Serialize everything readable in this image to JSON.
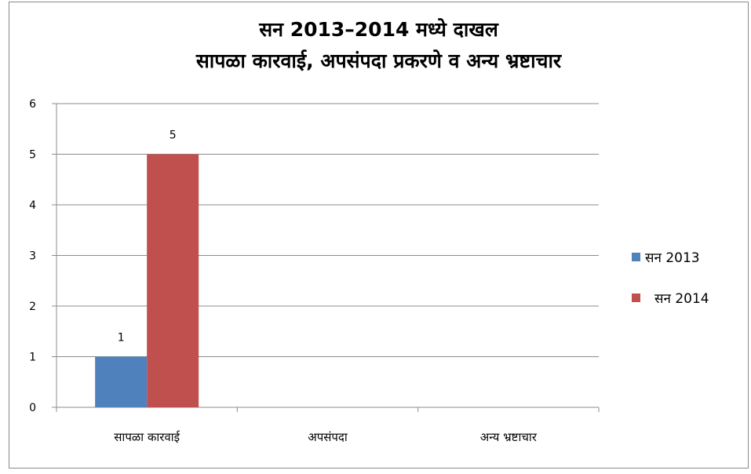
{
  "chart_data": {
    "type": "bar",
    "title_lines": [
      "सन 2013–2014 मध्ये दाखल",
      "सापळा कारवाई, अपसंपदा प्रकरणे व अन्य भ्रष्टाचार"
    ],
    "categories": [
      "सापळा कारवाई",
      "अपसंपदा",
      "अन्य भ्रष्टाचार"
    ],
    "series": [
      {
        "name": "सन 2013",
        "values": [
          1,
          null,
          null
        ],
        "color": "#4f81bd"
      },
      {
        "name": "सन 2014",
        "values": [
          5,
          null,
          null
        ],
        "color": "#c0504d"
      }
    ],
    "ylim": [
      0,
      6
    ],
    "yticks": [
      0,
      1,
      2,
      3,
      4,
      5,
      6
    ],
    "grid": true,
    "legend_position": "right",
    "data_labels": true
  }
}
